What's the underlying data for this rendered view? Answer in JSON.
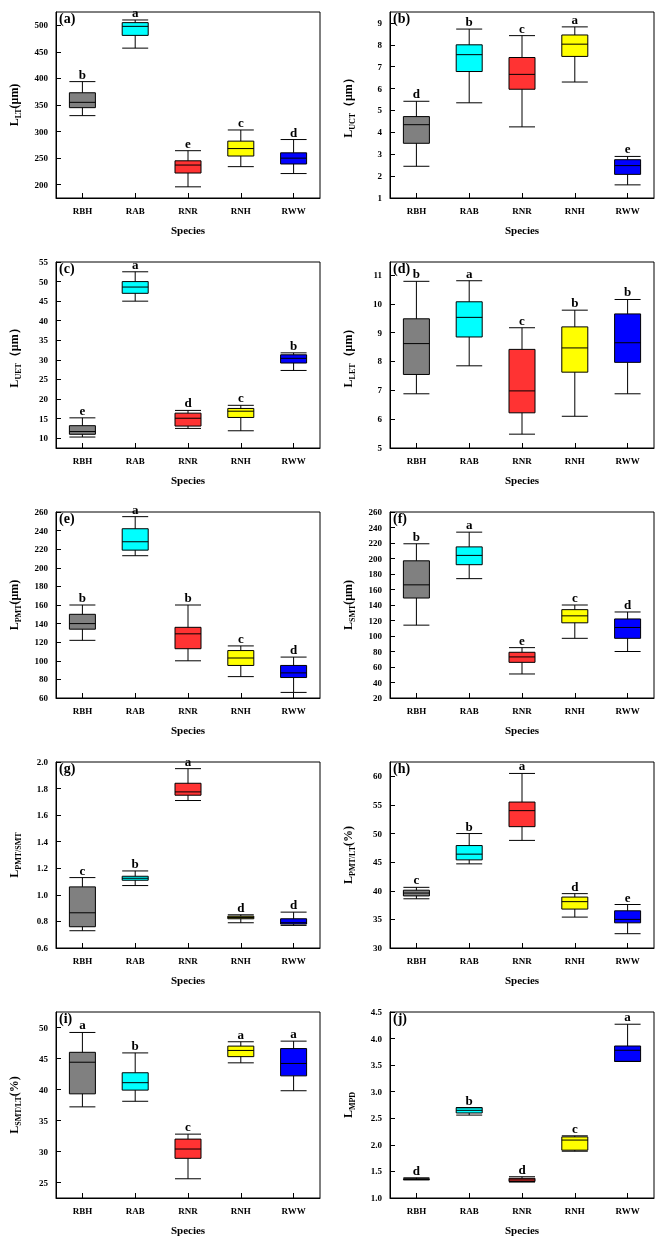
{
  "chart_data": [
    {
      "type": "box",
      "title": "(a)",
      "xlabel": "Species",
      "ylabel": "L$_{LT}$(μm)",
      "categories": [
        "RBH",
        "RAB",
        "RNR",
        "RNH",
        "RWW"
      ],
      "colors": [
        "#808080",
        "#00ffff",
        "#ff3333",
        "#ffff00",
        "#0000ff"
      ],
      "ylim": [
        175,
        525
      ],
      "yticks": [
        200,
        250,
        300,
        350,
        400,
        450,
        500
      ],
      "grid": false,
      "boxes": [
        {
          "low": 330,
          "q1": 345,
          "median": 355,
          "q3": 373,
          "high": 394
        },
        {
          "low": 457,
          "q1": 481,
          "median": 498,
          "q3": 505,
          "high": 510
        },
        {
          "low": 196,
          "q1": 222,
          "median": 237,
          "q3": 245,
          "high": 264
        },
        {
          "low": 234,
          "q1": 254,
          "median": 268,
          "q3": 282,
          "high": 303
        },
        {
          "low": 221,
          "q1": 239,
          "median": 250,
          "q3": 260,
          "high": 285
        }
      ],
      "annotations": [
        {
          "text": "b",
          "x": "RBH",
          "y": 394
        },
        {
          "text": "a",
          "x": "RAB",
          "y": 510
        },
        {
          "text": "e",
          "x": "RNR",
          "y": 264
        },
        {
          "text": "c",
          "x": "RNH",
          "y": 303
        },
        {
          "text": "d",
          "x": "RWW",
          "y": 285
        }
      ]
    },
    {
      "type": "box",
      "title": "(b)",
      "xlabel": "Species",
      "ylabel": "L$_{UCT}$（μm）",
      "categories": [
        "RBH",
        "RAB",
        "RNR",
        "RNH",
        "RWW"
      ],
      "colors": [
        "#808080",
        "#00ffff",
        "#ff3333",
        "#ffff00",
        "#0000ff"
      ],
      "ylim": [
        1,
        9.5
      ],
      "yticks": [
        1,
        2,
        3,
        4,
        5,
        6,
        7,
        8,
        9
      ],
      "grid": false,
      "boxes": [
        {
          "low": 2.45,
          "q1": 3.5,
          "median": 4.35,
          "q3": 4.72,
          "high": 5.42
        },
        {
          "low": 5.35,
          "q1": 6.78,
          "median": 7.55,
          "q3": 8.0,
          "high": 8.72
        },
        {
          "low": 4.25,
          "q1": 5.97,
          "median": 6.65,
          "q3": 7.42,
          "high": 8.42
        },
        {
          "low": 6.3,
          "q1": 7.47,
          "median": 8.03,
          "q3": 8.45,
          "high": 8.82
        },
        {
          "low": 1.6,
          "q1": 2.08,
          "median": 2.48,
          "q3": 2.75,
          "high": 2.9
        }
      ],
      "annotations": [
        {
          "text": "d",
          "x": "RBH",
          "y": 5.42
        },
        {
          "text": "b",
          "x": "RAB",
          "y": 8.72
        },
        {
          "text": "c",
          "x": "RNR",
          "y": 8.42
        },
        {
          "text": "a",
          "x": "RNH",
          "y": 8.82
        },
        {
          "text": "e",
          "x": "RWW",
          "y": 2.9
        }
      ]
    },
    {
      "type": "box",
      "title": "(c)",
      "xlabel": "Species",
      "ylabel": "L$_{UET}$（μm）",
      "categories": [
        "RBH",
        "RAB",
        "RNR",
        "RNH",
        "RWW"
      ],
      "colors": [
        "#808080",
        "#00ffff",
        "#ff3333",
        "#ffff00",
        "#0000ff"
      ],
      "ylim": [
        7.5,
        55
      ],
      "yticks": [
        10,
        15,
        20,
        25,
        30,
        35,
        40,
        45,
        50,
        55
      ],
      "grid": false,
      "boxes": [
        {
          "low": 10.3,
          "q1": 11,
          "median": 11.7,
          "q3": 13.2,
          "high": 15.2
        },
        {
          "low": 45,
          "q1": 47,
          "median": 48.6,
          "q3": 50,
          "high": 52.5
        },
        {
          "low": 12.5,
          "q1": 13.1,
          "median": 15.1,
          "q3": 16.4,
          "high": 17.1
        },
        {
          "low": 11.9,
          "q1": 15.3,
          "median": 16.9,
          "q3": 17.6,
          "high": 18.4
        },
        {
          "low": 27.3,
          "q1": 29.2,
          "median": 30.4,
          "q3": 31.3,
          "high": 31.8
        }
      ],
      "annotations": [
        {
          "text": "e",
          "x": "RBH",
          "y": 15.2
        },
        {
          "text": "a",
          "x": "RAB",
          "y": 52.5
        },
        {
          "text": "d",
          "x": "RNR",
          "y": 17.1
        },
        {
          "text": "c",
          "x": "RNH",
          "y": 18.4
        },
        {
          "text": "b",
          "x": "RWW",
          "y": 31.8
        }
      ]
    },
    {
      "type": "box",
      "title": "(d)",
      "xlabel": "Species",
      "ylabel": "L$_{LET}$（μm）",
      "categories": [
        "RBH",
        "RAB",
        "RNR",
        "RNH",
        "RWW"
      ],
      "colors": [
        "#808080",
        "#00ffff",
        "#ff3333",
        "#ffff00",
        "#0000ff"
      ],
      "ylim": [
        5,
        11.45
      ],
      "yticks": [
        5,
        6,
        7,
        8,
        9,
        10,
        11
      ],
      "grid": false,
      "boxes": [
        {
          "low": 6.88,
          "q1": 7.55,
          "median": 8.62,
          "q3": 9.48,
          "high": 10.78
        },
        {
          "low": 7.85,
          "q1": 8.85,
          "median": 9.53,
          "q3": 10.07,
          "high": 10.8
        },
        {
          "low": 5.48,
          "q1": 6.22,
          "median": 6.98,
          "q3": 8.42,
          "high": 9.17
        },
        {
          "low": 6.1,
          "q1": 7.63,
          "median": 8.47,
          "q3": 9.2,
          "high": 9.78
        },
        {
          "low": 6.88,
          "q1": 7.97,
          "median": 8.65,
          "q3": 9.65,
          "high": 10.15
        }
      ],
      "annotations": [
        {
          "text": "b",
          "x": "RBH",
          "y": 10.78
        },
        {
          "text": "a",
          "x": "RAB",
          "y": 10.8
        },
        {
          "text": "c",
          "x": "RNR",
          "y": 9.17
        },
        {
          "text": "b",
          "x": "RNH",
          "y": 9.78
        },
        {
          "text": "b",
          "x": "RWW",
          "y": 10.15
        }
      ]
    },
    {
      "type": "box",
      "title": "(e)",
      "xlabel": "Species",
      "ylabel": "L$_{PMT}$(μm)",
      "categories": [
        "RBH",
        "RAB",
        "RNR",
        "RNH",
        "RWW"
      ],
      "colors": [
        "#808080",
        "#00ffff",
        "#ff3333",
        "#ffff00",
        "#0000ff"
      ],
      "ylim": [
        60,
        260
      ],
      "yticks": [
        60,
        80,
        100,
        120,
        140,
        160,
        180,
        200,
        220,
        240,
        260
      ],
      "grid": false,
      "boxes": [
        {
          "low": 122,
          "q1": 134,
          "median": 140,
          "q3": 150,
          "high": 160
        },
        {
          "low": 213,
          "q1": 219,
          "median": 228,
          "q3": 242,
          "high": 255
        },
        {
          "low": 100,
          "q1": 113,
          "median": 129,
          "q3": 136,
          "high": 160
        },
        {
          "low": 83,
          "q1": 95,
          "median": 103,
          "q3": 111,
          "high": 116
        },
        {
          "low": 66,
          "q1": 82,
          "median": 87,
          "q3": 95,
          "high": 104
        }
      ],
      "annotations": [
        {
          "text": "b",
          "x": "RBH",
          "y": 160
        },
        {
          "text": "a",
          "x": "RAB",
          "y": 255
        },
        {
          "text": "b",
          "x": "RNR",
          "y": 160
        },
        {
          "text": "c",
          "x": "RNH",
          "y": 116
        },
        {
          "text": "d",
          "x": "RWW",
          "y": 104
        }
      ]
    },
    {
      "type": "box",
      "title": "(f)",
      "xlabel": "Species",
      "ylabel": "L$_{SMT}$(μm)",
      "categories": [
        "RBH",
        "RAB",
        "RNR",
        "RNH",
        "RWW"
      ],
      "colors": [
        "#808080",
        "#00ffff",
        "#ff3333",
        "#ffff00",
        "#0000ff"
      ],
      "ylim": [
        20,
        260
      ],
      "yticks": [
        20,
        40,
        60,
        80,
        100,
        120,
        140,
        160,
        180,
        200,
        220,
        240,
        260
      ],
      "grid": false,
      "boxes": [
        {
          "low": 114,
          "q1": 149,
          "median": 166,
          "q3": 197,
          "high": 219
        },
        {
          "low": 174,
          "q1": 192,
          "median": 204,
          "q3": 215,
          "high": 234
        },
        {
          "low": 51,
          "q1": 66,
          "median": 73,
          "q3": 79,
          "high": 85
        },
        {
          "low": 97,
          "q1": 117,
          "median": 126,
          "q3": 134,
          "high": 140
        },
        {
          "low": 80,
          "q1": 97,
          "median": 111,
          "q3": 122,
          "high": 131
        }
      ],
      "annotations": [
        {
          "text": "b",
          "x": "RBH",
          "y": 219
        },
        {
          "text": "a",
          "x": "RAB",
          "y": 234
        },
        {
          "text": "e",
          "x": "RNR",
          "y": 85
        },
        {
          "text": "c",
          "x": "RNH",
          "y": 140
        },
        {
          "text": "d",
          "x": "RWW",
          "y": 131
        }
      ]
    },
    {
      "type": "box",
      "title": "(g)",
      "xlabel": "Species",
      "ylabel": "L$_{PMT/SMT}$",
      "categories": [
        "RBH",
        "RAB",
        "RNR",
        "RNH",
        "RWW"
      ],
      "colors": [
        "#808080",
        "#00ffff",
        "#ff3333",
        "#a8a820",
        "#0000ff"
      ],
      "ylim": [
        0.6,
        2.0
      ],
      "yticks": [
        0.6,
        0.8,
        {
          "value": 1,
          "label": "1.0"
        },
        1.2,
        1.4,
        1.6,
        1.8,
        {
          "value": 2,
          "label": "2.0"
        }
      ],
      "grid": false,
      "boxes": [
        {
          "low": 0.73,
          "q1": 0.76,
          "median": 0.865,
          "q3": 1.06,
          "high": 1.13
        },
        {
          "low": 1.07,
          "q1": 1.11,
          "median": 1.125,
          "q3": 1.14,
          "high": 1.18
        },
        {
          "low": 1.71,
          "q1": 1.75,
          "median": 1.775,
          "q3": 1.84,
          "high": 1.95
        },
        {
          "low": 0.79,
          "q1": 0.82,
          "median": 0.83,
          "q3": 0.84,
          "high": 0.85
        },
        {
          "low": 0.77,
          "q1": 0.78,
          "median": 0.79,
          "q3": 0.82,
          "high": 0.87
        }
      ],
      "annotations": [
        {
          "text": "c",
          "x": "RBH",
          "y": 1.13
        },
        {
          "text": "b",
          "x": "RAB",
          "y": 1.18
        },
        {
          "text": "a",
          "x": "RNR",
          "y": 1.95
        },
        {
          "text": "d",
          "x": "RNH",
          "y": 0.85
        },
        {
          "text": "d",
          "x": "RWW",
          "y": 0.87
        }
      ]
    },
    {
      "type": "box",
      "title": "(h)",
      "xlabel": "Species",
      "ylabel": "L$_{PMT/LT}$(%)",
      "categories": [
        "RBH",
        "RAB",
        "RNR",
        "RNH",
        "RWW"
      ],
      "colors": [
        "#808080",
        "#00ffff",
        "#ff3333",
        "#ffff00",
        "#0000ff"
      ],
      "ylim": [
        30,
        62.5
      ],
      "yticks": [
        30,
        35,
        40,
        45,
        50,
        55,
        60
      ],
      "grid": false,
      "boxes": [
        {
          "low": 38.6,
          "q1": 39.1,
          "median": 39.6,
          "q3": 40.1,
          "high": 40.6
        },
        {
          "low": 44.7,
          "q1": 45.4,
          "median": 46.4,
          "q3": 47.9,
          "high": 50
        },
        {
          "low": 48.8,
          "q1": 51.2,
          "median": 54,
          "q3": 55.5,
          "high": 60.5
        },
        {
          "low": 35.4,
          "q1": 36.8,
          "median": 38.1,
          "q3": 38.9,
          "high": 39.5
        },
        {
          "low": 32.5,
          "q1": 34.4,
          "median": 35,
          "q3": 36.5,
          "high": 37.6
        }
      ],
      "annotations": [
        {
          "text": "c",
          "x": "RBH",
          "y": 40.6
        },
        {
          "text": "b",
          "x": "RAB",
          "y": 50
        },
        {
          "text": "a",
          "x": "RNR",
          "y": 60.5
        },
        {
          "text": "d",
          "x": "RNH",
          "y": 39.5
        },
        {
          "text": "e",
          "x": "RWW",
          "y": 37.6
        }
      ]
    },
    {
      "type": "box",
      "title": "(i)",
      "xlabel": "Species",
      "ylabel": "L$_{SMT/LT}$(%)",
      "categories": [
        "RBH",
        "RAB",
        "RNR",
        "RNH",
        "RWW"
      ],
      "colors": [
        "#808080",
        "#00ffff",
        "#ff3333",
        "#ffff00",
        "#0000ff"
      ],
      "ylim": [
        22.5,
        52.5
      ],
      "yticks": [
        25,
        30,
        35,
        40,
        45,
        50
      ],
      "grid": false,
      "boxes": [
        {
          "low": 37.2,
          "q1": 39.3,
          "median": 44.4,
          "q3": 46,
          "high": 49.2
        },
        {
          "low": 38.1,
          "q1": 39.9,
          "median": 41.1,
          "q3": 42.7,
          "high": 45.9
        },
        {
          "low": 25.6,
          "q1": 28.9,
          "median": 30.4,
          "q3": 32,
          "high": 32.8
        },
        {
          "low": 44.3,
          "q1": 45.3,
          "median": 46.3,
          "q3": 47,
          "high": 47.7
        },
        {
          "low": 39.8,
          "q1": 42.2,
          "median": 44.2,
          "q3": 46.6,
          "high": 47.8
        }
      ],
      "annotations": [
        {
          "text": "a",
          "x": "RBH",
          "y": 49.2
        },
        {
          "text": "b",
          "x": "RAB",
          "y": 45.9
        },
        {
          "text": "c",
          "x": "RNR",
          "y": 32.8
        },
        {
          "text": "a",
          "x": "RNH",
          "y": 47.7
        },
        {
          "text": "a",
          "x": "RWW",
          "y": 47.8
        }
      ]
    },
    {
      "type": "box",
      "title": "(j)",
      "xlabel": "Species",
      "ylabel": "L$_{MPD}$",
      "categories": [
        "RBH",
        "RAB",
        "RNR",
        "RNH",
        "RWW"
      ],
      "colors": [
        "#808080",
        "#00ffff",
        "#ff3333",
        "#ffff00",
        "#0000ff"
      ],
      "ylim": [
        1.0,
        4.5
      ],
      "yticks": [
        {
          "value": 1,
          "label": "1.0"
        },
        1.5,
        {
          "value": 2,
          "label": "2.0"
        },
        2.5,
        {
          "value": 3,
          "label": "3.0"
        },
        3.5,
        {
          "value": 4,
          "label": "4.0"
        },
        4.5
      ],
      "grid": false,
      "boxes": [
        {
          "low": 1.34,
          "q1": 1.35,
          "median": 1.355,
          "q3": 1.36,
          "high": 1.38
        },
        {
          "low": 2.56,
          "q1": 2.6,
          "median": 2.65,
          "q3": 2.7,
          "high": 2.7
        },
        {
          "low": 1.3,
          "q1": 1.31,
          "median": 1.34,
          "q3": 1.37,
          "high": 1.4
        },
        {
          "low": 1.88,
          "q1": 1.9,
          "median": 2.09,
          "q3": 2.15,
          "high": 2.17
        },
        {
          "low": 3.57,
          "q1": 3.57,
          "median": 3.78,
          "q3": 3.86,
          "high": 4.27
        }
      ],
      "annotations": [
        {
          "text": "d",
          "x": "RBH",
          "y": 1.38
        },
        {
          "text": "b",
          "x": "RAB",
          "y": 2.7
        },
        {
          "text": "d",
          "x": "RNR",
          "y": 1.4
        },
        {
          "text": "c",
          "x": "RNH",
          "y": 2.17
        },
        {
          "text": "a",
          "x": "RWW",
          "y": 4.27
        }
      ]
    }
  ]
}
